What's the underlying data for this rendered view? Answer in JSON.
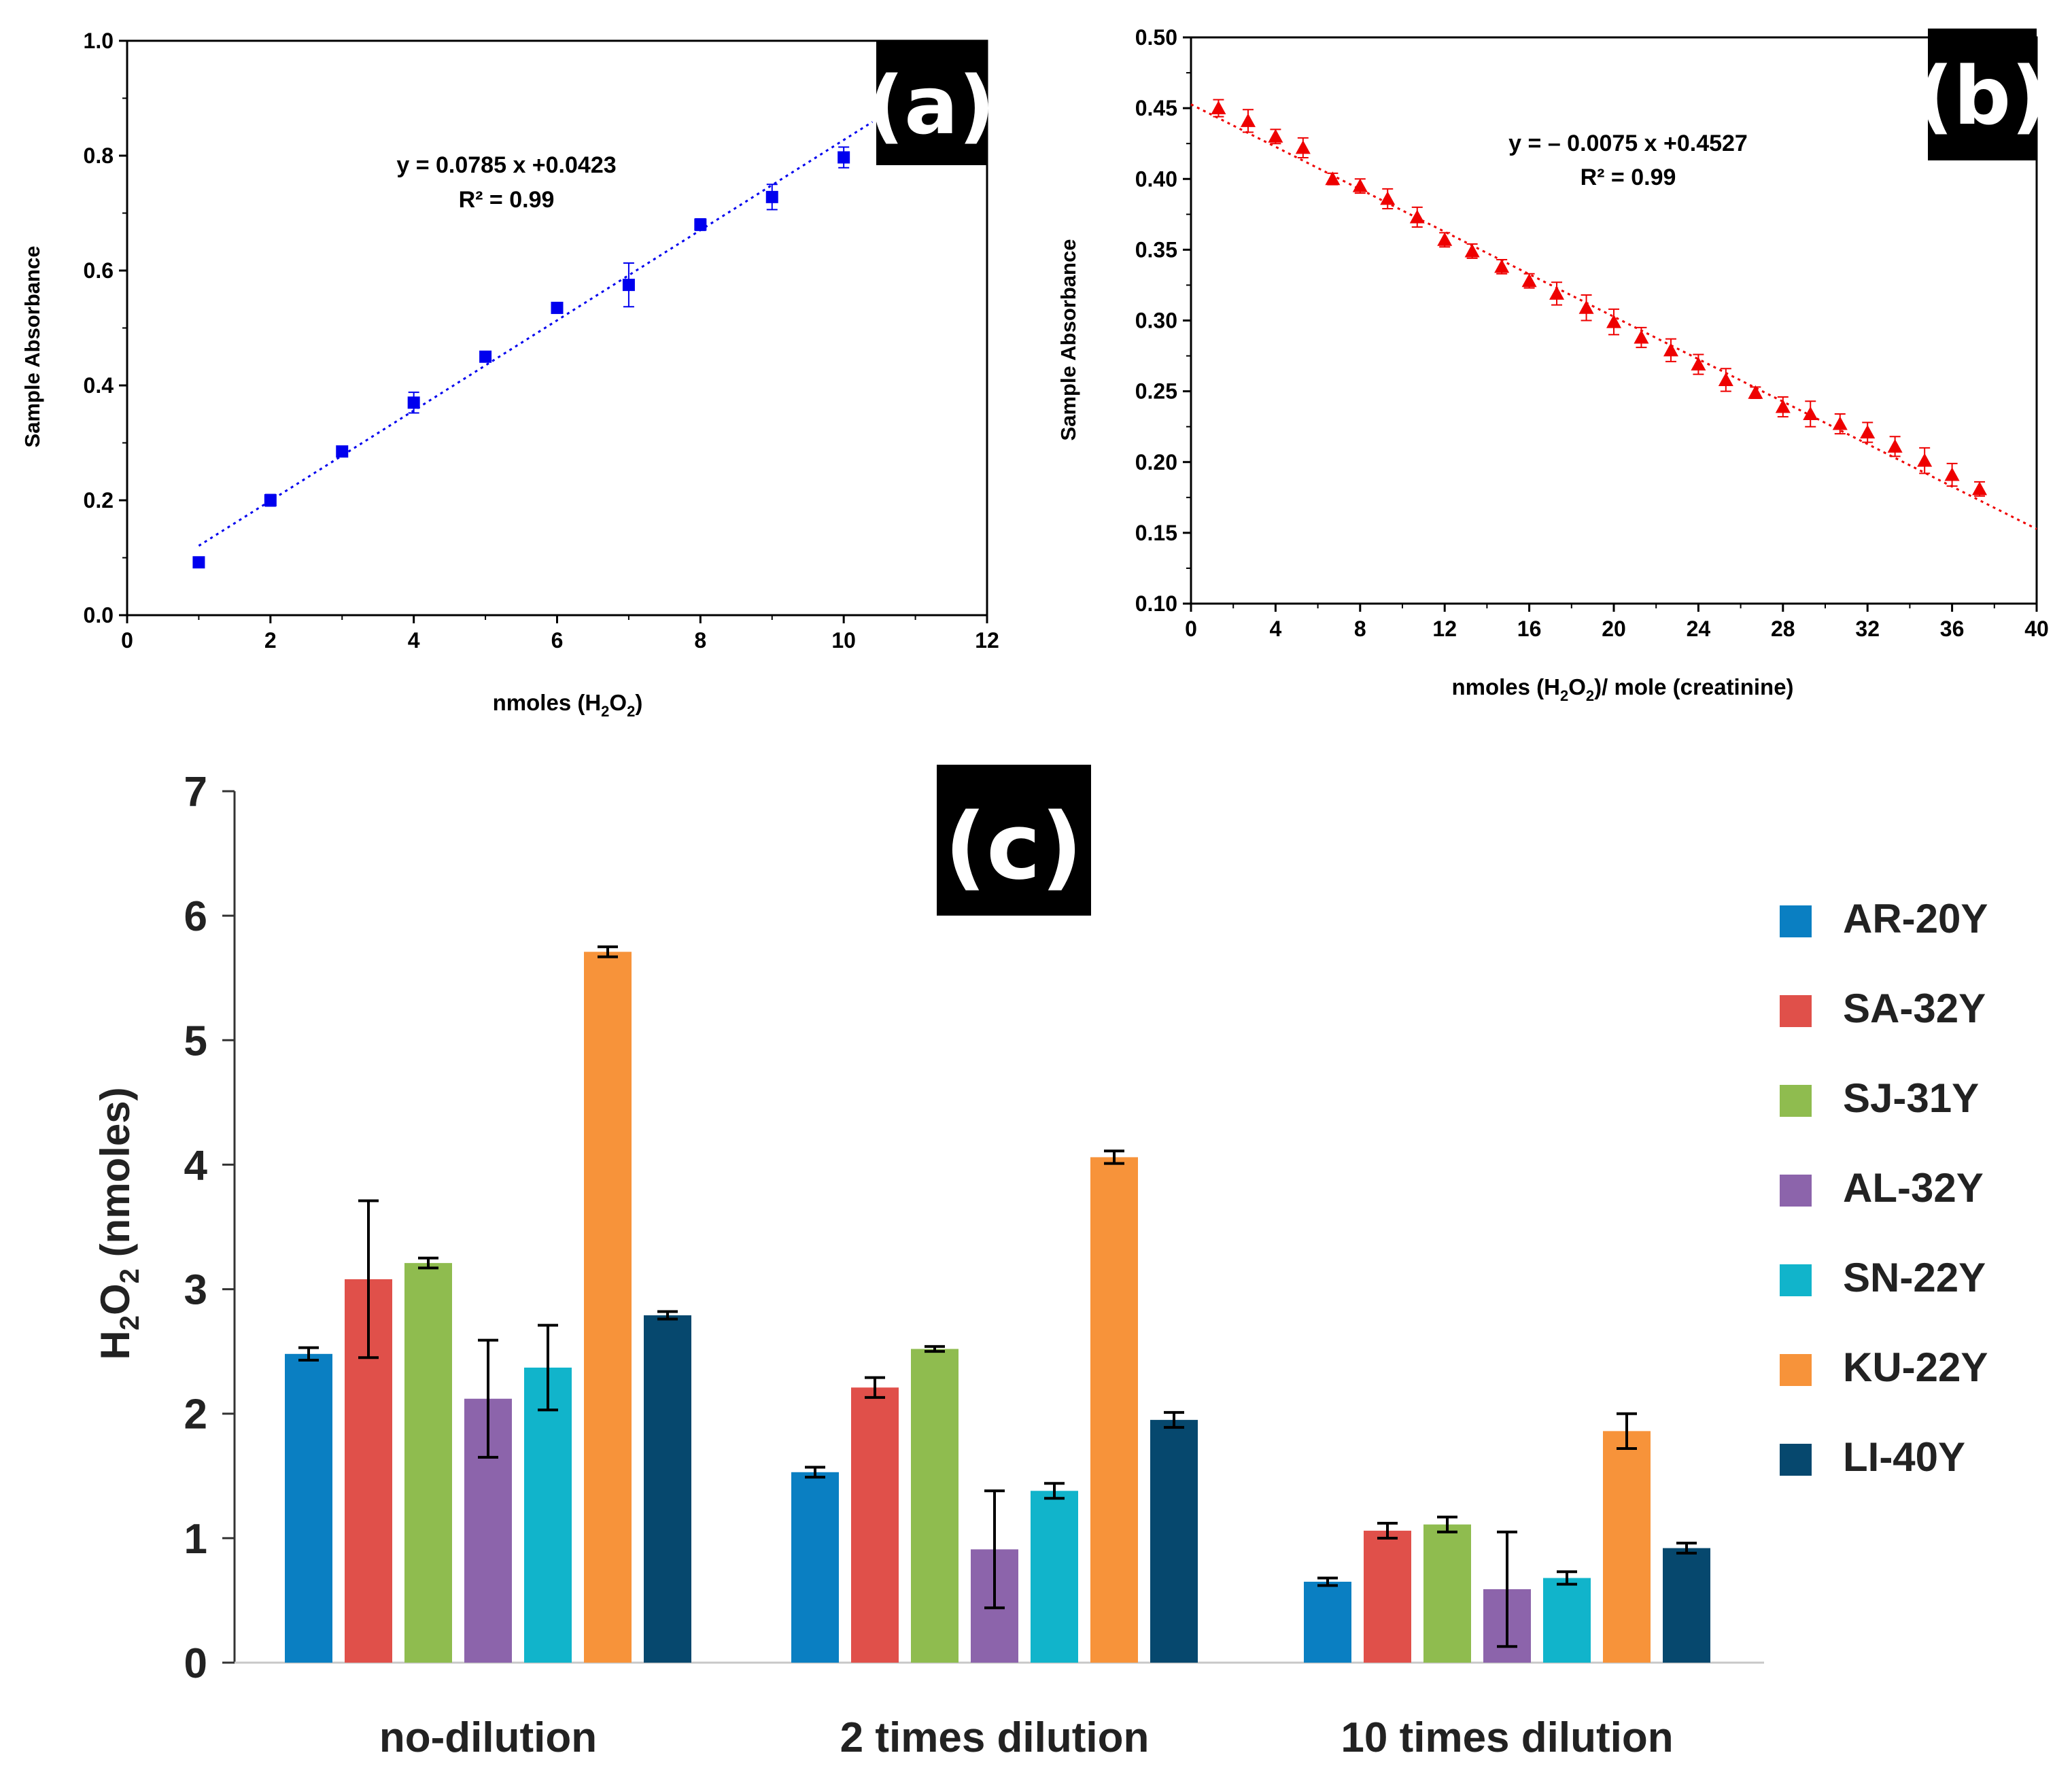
{
  "chart_data": [
    {
      "panel": "(a)",
      "type": "scatter",
      "title": "",
      "xlabel": "nmoles (H2O2)",
      "xlabel_parts": {
        "pre": "nmoles (H",
        "sub1": "2",
        "mid": "O",
        "sub2": "2",
        "post": ")"
      },
      "ylabel": "Sample Absorbance",
      "xlim": [
        0,
        12
      ],
      "ylim": [
        0.0,
        1.0
      ],
      "xticks": [
        0,
        2,
        4,
        6,
        8,
        10,
        12
      ],
      "xtick_labels": [
        "0",
        "2",
        "4",
        "6",
        "8",
        "10",
        "12"
      ],
      "yticks": [
        0.0,
        0.2,
        0.4,
        0.6,
        0.8,
        1.0
      ],
      "ytick_labels": [
        "0.0",
        "0.2",
        "0.4",
        "0.6",
        "0.8",
        "1.0"
      ],
      "color": "#0000ee",
      "x": [
        1,
        2,
        3,
        4,
        5,
        6,
        7,
        8,
        9,
        10
      ],
      "y": [
        0.092,
        0.2,
        0.285,
        0.37,
        0.45,
        0.535,
        0.575,
        0.68,
        0.728,
        0.797
      ],
      "err": [
        0.006,
        0.01,
        0.006,
        0.018,
        0.008,
        0.006,
        0.038,
        0.01,
        0.022,
        0.018
      ],
      "fit": {
        "slope": 0.0785,
        "intercept": 0.0423,
        "x_range": [
          1,
          10.4
        ]
      },
      "annotations": [
        "y = 0.0785 x +0.0423",
        "R² = 0.99"
      ]
    },
    {
      "panel": "(b)",
      "type": "scatter",
      "title": "",
      "xlabel": "nmoles (H2O2)/ mole (creatinine)",
      "xlabel_parts": {
        "pre": "nmoles (H",
        "sub1": "2",
        "mid": "O",
        "sub2": "2",
        "post": ")/ mole (creatinine)"
      },
      "ylabel": "Sample Absorbance",
      "xlim": [
        0,
        40
      ],
      "ylim": [
        0.1,
        0.5
      ],
      "xticks": [
        0,
        4,
        8,
        12,
        16,
        20,
        24,
        28,
        32,
        36,
        40
      ],
      "xtick_labels": [
        "0",
        "4",
        "8",
        "12",
        "16",
        "20",
        "24",
        "28",
        "32",
        "36",
        "40"
      ],
      "yticks": [
        0.1,
        0.15,
        0.2,
        0.25,
        0.3,
        0.35,
        0.4,
        0.45,
        0.5
      ],
      "ytick_labels": [
        "0.10",
        "0.15",
        "0.20",
        "0.25",
        "0.30",
        "0.35",
        "0.40",
        "0.45",
        "0.50"
      ],
      "color": "#ee0000",
      "x": [
        1.3,
        2.7,
        4.0,
        5.3,
        6.7,
        8.0,
        9.3,
        10.7,
        12.0,
        13.3,
        14.7,
        16.0,
        17.3,
        18.7,
        20.0,
        21.3,
        22.7,
        24.0,
        25.3,
        26.7,
        28.0,
        29.3,
        30.7,
        32.0,
        33.3,
        34.7,
        36.0,
        37.3
      ],
      "y": [
        0.45,
        0.441,
        0.43,
        0.422,
        0.4,
        0.395,
        0.386,
        0.373,
        0.357,
        0.349,
        0.338,
        0.328,
        0.319,
        0.309,
        0.299,
        0.288,
        0.279,
        0.269,
        0.258,
        0.249,
        0.239,
        0.234,
        0.227,
        0.221,
        0.211,
        0.201,
        0.191,
        0.181
      ],
      "err": [
        0.006,
        0.008,
        0.005,
        0.007,
        0.004,
        0.005,
        0.007,
        0.007,
        0.005,
        0.005,
        0.005,
        0.005,
        0.008,
        0.009,
        0.009,
        0.007,
        0.008,
        0.007,
        0.008,
        0.004,
        0.007,
        0.009,
        0.007,
        0.007,
        0.007,
        0.009,
        0.008,
        0.005
      ],
      "fit": {
        "slope": -0.0075,
        "intercept": 0.4527,
        "x_range": [
          0,
          40
        ]
      },
      "annotations": [
        "y = – 0.0075 x +0.4527",
        "R² = 0.99"
      ]
    },
    {
      "panel": "(c)",
      "type": "bar",
      "title": "",
      "xlabel": "",
      "ylabel": "H2O2 (nmoles)",
      "ylabel_parts": {
        "pre": "H",
        "sub1": "2",
        "mid": "O",
        "sub2": "2",
        "post": " (nmoles)"
      },
      "ylim": [
        0,
        7
      ],
      "yticks": [
        0,
        1,
        2,
        3,
        4,
        5,
        6,
        7
      ],
      "ytick_labels": [
        "0",
        "1",
        "2",
        "3",
        "4",
        "5",
        "6",
        "7"
      ],
      "categories": [
        "no-dilution",
        "2 times dilution",
        "10 times dilution"
      ],
      "legend_position": "right",
      "series": [
        {
          "name": "AR-20Y",
          "color": "#0a7fc2",
          "values": [
            2.48,
            1.53,
            0.65
          ],
          "err": [
            0.05,
            0.04,
            0.03
          ]
        },
        {
          "name": "SA-32Y",
          "color": "#e0504a",
          "values": [
            3.08,
            2.21,
            1.06
          ],
          "err": [
            0.63,
            0.08,
            0.06
          ]
        },
        {
          "name": "SJ-31Y",
          "color": "#8fbc4f",
          "values": [
            3.21,
            2.52,
            1.11
          ],
          "err": [
            0.04,
            0.02,
            0.06
          ]
        },
        {
          "name": "AL-32Y",
          "color": "#8c64ab",
          "values": [
            2.12,
            0.91,
            0.59
          ],
          "err": [
            0.47,
            0.47,
            0.46
          ]
        },
        {
          "name": "SN-22Y",
          "color": "#11b4cb",
          "values": [
            2.37,
            1.38,
            0.68
          ],
          "err": [
            0.34,
            0.06,
            0.05
          ]
        },
        {
          "name": "KU-22Y",
          "color": "#f7933a",
          "values": [
            5.71,
            4.06,
            1.86
          ],
          "err": [
            0.04,
            0.05,
            0.14
          ]
        },
        {
          "name": "LI-40Y",
          "color": "#06486e",
          "values": [
            2.79,
            1.95,
            0.92
          ],
          "err": [
            0.03,
            0.06,
            0.04
          ]
        }
      ]
    }
  ]
}
